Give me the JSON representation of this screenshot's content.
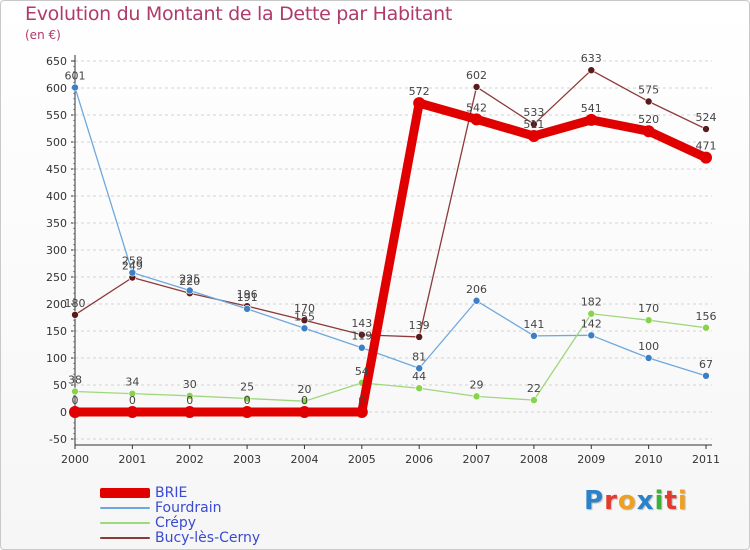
{
  "header": {
    "title": "Evolution du Montant de la Dette par Habitant",
    "subtitle": "(en €)"
  },
  "logo": {
    "text": "Proxiti",
    "letters": [
      {
        "ch": "P",
        "color": "#2b82c9"
      },
      {
        "ch": "r",
        "color": "#e23b2e"
      },
      {
        "ch": "o",
        "color": "#f0a01e"
      },
      {
        "ch": "x",
        "color": "#2b82c9"
      },
      {
        "ch": "i",
        "color": "#3fae3a"
      },
      {
        "ch": "t",
        "color": "#e23b2e"
      },
      {
        "ch": "i",
        "color": "#f0a01e"
      }
    ]
  },
  "colors": {
    "title": "#b03a6a",
    "legend_text": "#3a4bd0",
    "axis": "#333333",
    "grid": "#d4d4d4"
  },
  "chart_data": {
    "type": "line",
    "title": "Evolution du Montant de la Dette par Habitant",
    "ylabel": "(en €)",
    "xlabel": "",
    "ylim": [
      -50,
      650
    ],
    "y_ticks": [
      -50,
      0,
      50,
      100,
      150,
      200,
      250,
      300,
      350,
      400,
      450,
      500,
      550,
      600,
      650
    ],
    "grid": "horizontal dashed",
    "legend_position": "bottom-left",
    "x": [
      "2000",
      "2001",
      "2002",
      "2003",
      "2004",
      "2005",
      "2006",
      "2007",
      "2008",
      "2009",
      "2010",
      "2011"
    ],
    "series": [
      {
        "name": "BRIE",
        "color": "#e00000",
        "marker": "#e00000",
        "width": "thick",
        "values": [
          0,
          0,
          0,
          0,
          0,
          0,
          572,
          542,
          511,
          541,
          520,
          471
        ],
        "labels": [
          "0",
          "0",
          "0",
          "0",
          "0",
          "0",
          "572",
          "542",
          "511",
          "541",
          "520",
          "471"
        ]
      },
      {
        "name": "Fourdrain",
        "color": "#6fa8dc",
        "marker": "#3d7fc4",
        "width": "thin",
        "values": [
          601,
          258,
          225,
          191,
          155,
          119,
          81,
          206,
          141,
          142,
          100,
          67
        ],
        "labels": [
          "601",
          "258",
          "225",
          "191",
          "155",
          "119",
          "81",
          "206",
          "141",
          "142",
          "100",
          "67"
        ]
      },
      {
        "name": "Crépy",
        "color": "#9fd77c",
        "marker": "#88d34c",
        "width": "thin",
        "values": [
          38,
          34,
          30,
          25,
          20,
          54,
          44,
          29,
          22,
          182,
          170,
          156
        ],
        "labels": [
          "38",
          "34",
          "30",
          "25",
          "20",
          "54",
          "44",
          "29",
          "22",
          "182",
          "170",
          "156"
        ]
      },
      {
        "name": "Bucy-lès-Cerny",
        "color": "#8b3a3a",
        "marker": "#5a1a1a",
        "width": "thin",
        "values": [
          180,
          249,
          220,
          196,
          170,
          143,
          139,
          602,
          533,
          633,
          575,
          524
        ],
        "labels": [
          "180",
          "249",
          "220",
          "196",
          "170",
          "143",
          "139",
          "602",
          "533",
          "633",
          "575",
          "524"
        ]
      }
    ]
  }
}
